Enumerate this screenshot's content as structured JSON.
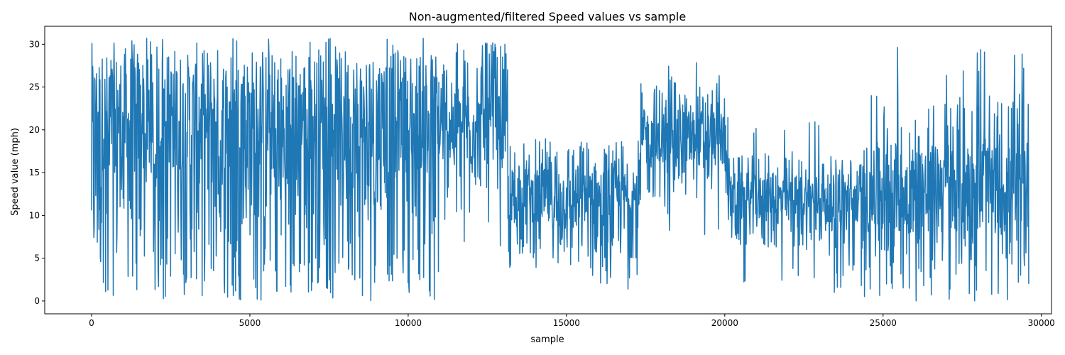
{
  "chart_data": {
    "type": "line",
    "title": "Non-augmented/filtered Speed values vs sample",
    "xlabel": "sample",
    "ylabel": "Speed value (mph)",
    "xlim": [
      -1480,
      30320
    ],
    "ylim": [
      -1.5,
      32.1
    ],
    "xticks": [
      0,
      5000,
      10000,
      15000,
      20000,
      25000,
      30000
    ],
    "yticks": [
      0,
      5,
      10,
      15,
      20,
      25,
      30
    ],
    "grid": false,
    "legend": "none",
    "series_color": "#1f77b4",
    "series": [
      {
        "sample_range": [
          0,
          29600
        ],
        "segments": [
          {
            "x_range": [
              0,
              11050
            ],
            "typical_range": [
              2,
              30.2
            ],
            "extremes": [
              0,
              30.7
            ],
            "approx_mean": 22
          },
          {
            "x_range": [
              11050,
              13150
            ],
            "typical_range": [
              13,
              30
            ],
            "extremes": [
              6,
              30.3
            ],
            "approx_mean": 20
          },
          {
            "x_range": [
              13150,
              17350
            ],
            "typical_range": [
              5,
              19
            ],
            "extremes": [
              1,
              20.3
            ],
            "approx_mean": 12
          },
          {
            "x_range": [
              17350,
              20100
            ],
            "typical_range": [
              12,
              25.5
            ],
            "extremes": [
              1,
              28
            ],
            "approx_mean": 19
          },
          {
            "x_range": [
              20100,
              24400
            ],
            "typical_range": [
              6,
              17
            ],
            "extremes": [
              0.8,
              21.5
            ],
            "approx_mean": 12
          },
          {
            "x_range": [
              24400,
              29600
            ],
            "typical_range": [
              3,
              24
            ],
            "extremes": [
              0,
              30.2
            ],
            "approx_mean": 13
          }
        ]
      }
    ]
  }
}
